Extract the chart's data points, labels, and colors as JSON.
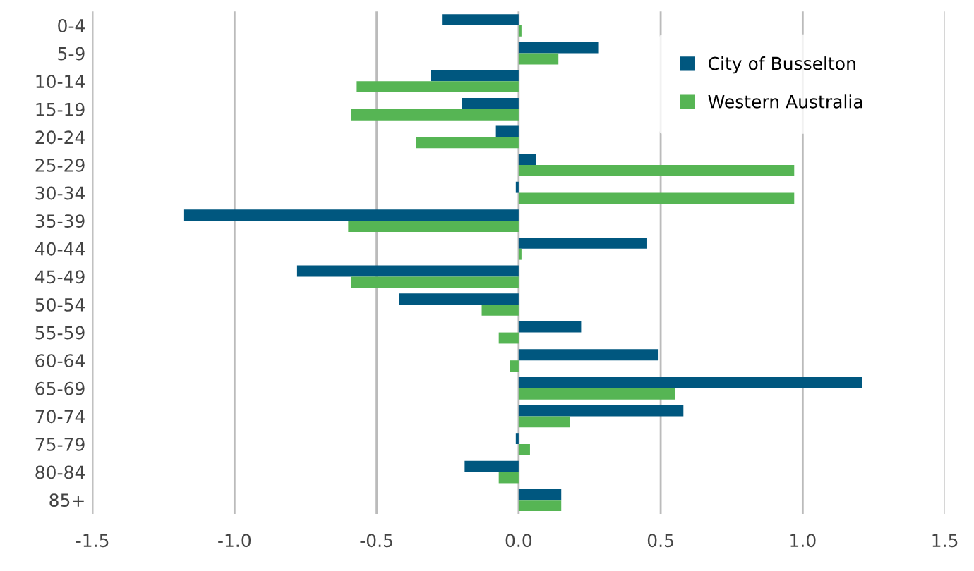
{
  "chart_data": {
    "type": "bar",
    "orientation": "horizontal",
    "categories": [
      "0-4",
      "5-9",
      "10-14",
      "15-19",
      "20-24",
      "25-29",
      "30-34",
      "35-39",
      "40-44",
      "45-49",
      "50-54",
      "55-59",
      "60-64",
      "65-69",
      "70-74",
      "75-79",
      "80-84",
      "85+"
    ],
    "series": [
      {
        "name": "City of Busselton",
        "color": "#00577f",
        "values": [
          -0.27,
          0.28,
          -0.31,
          -0.2,
          -0.08,
          0.06,
          -0.01,
          -1.18,
          0.45,
          -0.78,
          -0.42,
          0.22,
          0.49,
          1.21,
          0.58,
          -0.01,
          -0.19,
          0.15
        ]
      },
      {
        "name": "Western Australia",
        "color": "#56b554",
        "values": [
          0.01,
          0.14,
          -0.57,
          -0.59,
          -0.36,
          0.97,
          0.97,
          -0.6,
          0.01,
          -0.59,
          -0.13,
          -0.07,
          -0.03,
          0.55,
          0.18,
          0.04,
          -0.07,
          0.15
        ]
      }
    ],
    "xlim": [
      -1.5,
      1.5
    ],
    "xticks": [
      {
        "value": -1.5,
        "label": "-1.5"
      },
      {
        "value": -1.0,
        "label": "-1.0"
      },
      {
        "value": -0.5,
        "label": "-0.5"
      },
      {
        "value": 0,
        "label": "0.0"
      },
      {
        "value": 0.5,
        "label": "0.5"
      },
      {
        "value": 1.0,
        "label": "1.0"
      },
      {
        "value": 1.5,
        "label": "1.5"
      }
    ],
    "grid": "x",
    "legend": "top right"
  }
}
